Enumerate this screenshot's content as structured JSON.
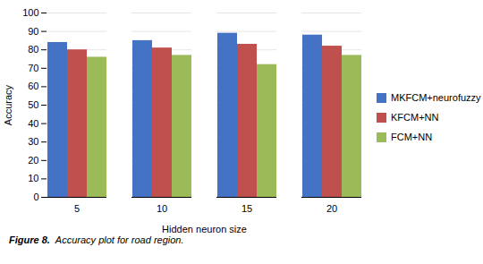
{
  "chart_data": {
    "type": "bar",
    "categories": [
      "5",
      "10",
      "15",
      "20"
    ],
    "series": [
      {
        "name": "MKFCM+neurofuzzy",
        "color": "#4472C4",
        "values": [
          84,
          85,
          89,
          88
        ]
      },
      {
        "name": "KFCM+NN",
        "color": "#C0504D",
        "values": [
          80,
          81,
          83,
          82
        ]
      },
      {
        "name": "FCM+NN",
        "color": "#9BBB59",
        "values": [
          76,
          77,
          72,
          77
        ]
      }
    ],
    "xlabel": "Hidden neuron size",
    "ylabel": "Accuracy",
    "ylim": [
      0,
      100
    ],
    "yticks": [
      0,
      10,
      20,
      30,
      40,
      50,
      60,
      70,
      80,
      90,
      100
    ],
    "grid": true,
    "legend": "right",
    "caption": [
      "Figure 8.",
      "Accuracy plot for road region."
    ]
  }
}
